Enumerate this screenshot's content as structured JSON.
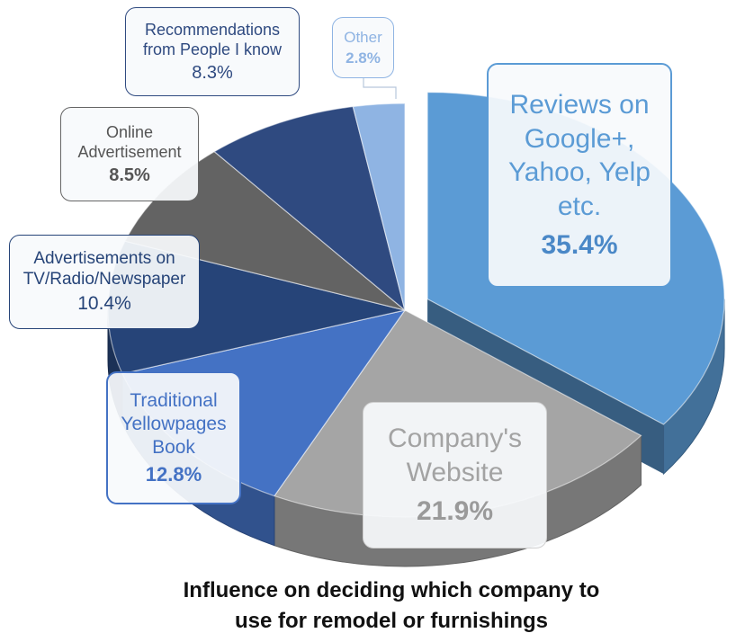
{
  "chart_data": {
    "type": "pie",
    "title": [
      "Influence on deciding which company to",
      "use for remodel or furnishings"
    ],
    "slices": [
      {
        "label": "Reviews on Google+, Yahoo, Yelp etc.",
        "lines": [
          "Reviews on",
          "Google+,",
          "Yahoo, Yelp",
          "etc."
        ],
        "value": 35.4,
        "value_label": "35.4%",
        "color": "#5b9bd5",
        "exploded": true
      },
      {
        "label": "Company's Website",
        "lines": [
          "Company's",
          "Website"
        ],
        "value": 21.9,
        "value_label": "21.9%",
        "color": "#a5a5a5",
        "exploded": false
      },
      {
        "label": "Traditional Yellowpages Book",
        "lines": [
          "Traditional",
          "Yellowpages",
          "Book"
        ],
        "value": 12.8,
        "value_label": "12.8%",
        "color": "#4472c4",
        "exploded": false
      },
      {
        "label": "Advertisements on TV/Radio/Newspaper",
        "lines": [
          "Advertisements on",
          "TV/Radio/Newspaper"
        ],
        "value": 10.4,
        "value_label": "10.4%",
        "color": "#264478",
        "exploded": false
      },
      {
        "label": "Online Advertisement",
        "lines": [
          "Online",
          "Advertisement"
        ],
        "value": 8.5,
        "value_label": "8.5%",
        "color": "#636363",
        "exploded": false
      },
      {
        "label": "Recommendations from People I know",
        "lines": [
          "Recommendations",
          "from People I know"
        ],
        "value": 8.3,
        "value_label": "8.3%",
        "color": "#2f4a80",
        "exploded": false
      },
      {
        "label": "Other",
        "lines": [
          "Other"
        ],
        "value": 2.8,
        "value_label": "2.8%",
        "color": "#8fb4e3",
        "exploded": false
      }
    ]
  }
}
